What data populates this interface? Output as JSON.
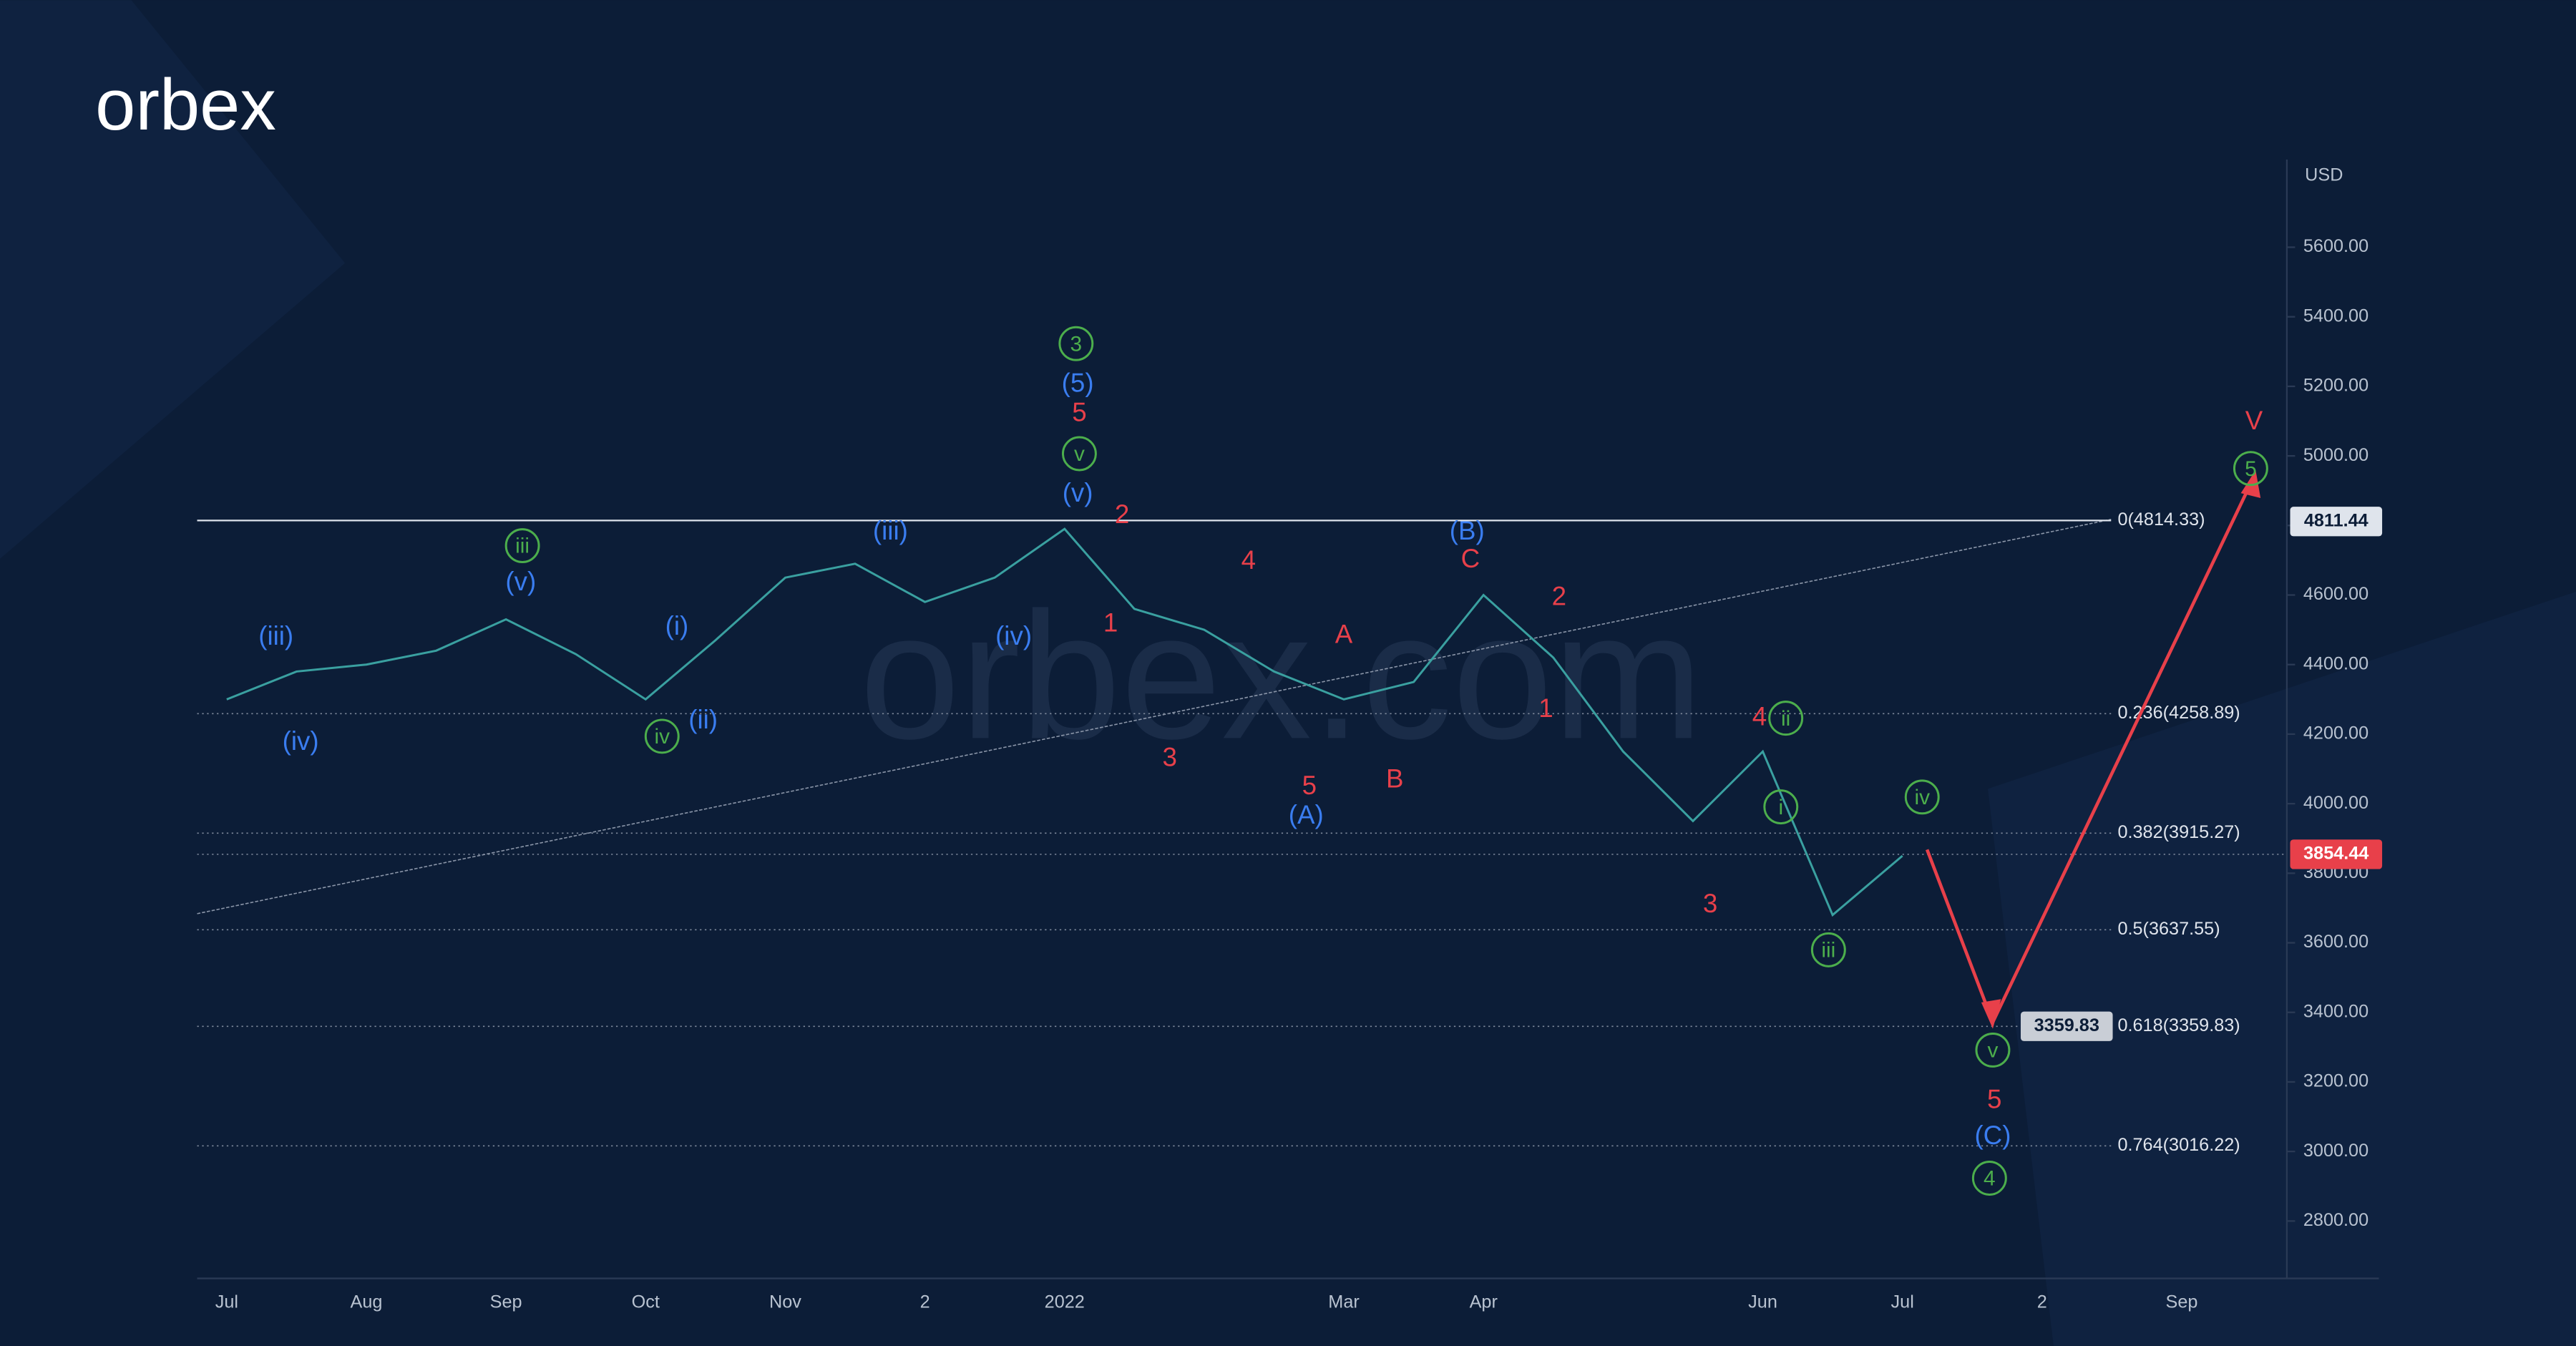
{
  "logo": "orbex",
  "watermark": "orbex.com",
  "chart_data": {
    "type": "line",
    "color": "#3aa0a0",
    "currency": "USD",
    "categories": [
      "Jul",
      null,
      "Aug",
      null,
      "Sep",
      null,
      "Oct",
      null,
      "Nov",
      null,
      "2",
      null,
      "2022",
      null,
      null,
      null,
      "Mar",
      null,
      "Apr",
      null,
      null,
      null,
      "Jun",
      null,
      "Jul",
      null,
      "2",
      null,
      "Sep"
    ],
    "values": [
      4300,
      4380,
      4400,
      4440,
      4530,
      4430,
      4300,
      4470,
      4650,
      4690,
      4580,
      4650,
      4790,
      4560,
      4500,
      4380,
      4300,
      4350,
      4600,
      4420,
      4150,
      3950,
      4150,
      3680,
      3850,
      null,
      null,
      null,
      null
    ],
    "ylim": [
      2635,
      5852
    ],
    "yticks": [
      {
        "value": 2800,
        "label": "2800.00"
      },
      {
        "value": 3000,
        "label": "3000.00"
      },
      {
        "value": 3200,
        "label": "3200.00"
      },
      {
        "value": 3400,
        "label": "3400.00"
      },
      {
        "value": 3600,
        "label": "3600.00"
      },
      {
        "value": 3800,
        "label": "3800.00"
      },
      {
        "value": 4000,
        "label": "4000.00"
      },
      {
        "value": 4200,
        "label": "4200.00"
      },
      {
        "value": 4400,
        "label": "4400.00"
      },
      {
        "value": 4600,
        "label": "4600.00"
      },
      {
        "value": 4800,
        "label": "4800.00"
      },
      {
        "value": 5000,
        "label": "5000.00"
      },
      {
        "value": 5200,
        "label": "5200.00"
      },
      {
        "value": 5400,
        "label": "5400.00"
      },
      {
        "value": 5600,
        "label": "5600.00"
      }
    ],
    "fib_levels": [
      {
        "value": 4814.33,
        "label": "0(4814.33)"
      },
      {
        "value": 4258.89,
        "label": "0.236(4258.89)"
      },
      {
        "value": 3915.27,
        "label": "0.382(3915.27)"
      },
      {
        "value": 3637.55,
        "label": "0.5(3637.55)"
      },
      {
        "value": 3359.83,
        "label": "0.618(3359.83)"
      },
      {
        "value": 3016.22,
        "label": "0.764(3016.22)"
      }
    ],
    "price_tags": [
      4811.44,
      3854.44,
      3359.83
    ],
    "waves": [
      "3",
      "v",
      "iii",
      "iv",
      "ii",
      "i",
      "iv",
      "iii",
      "v",
      "4",
      "5",
      "(5)",
      "(v)",
      "(iii)",
      "(iv)",
      "(v)",
      "(i)",
      "(ii)",
      "(iii)",
      "(iv)",
      "(B)",
      "(A)",
      "(C)",
      "5",
      "2",
      "1",
      "3",
      "4",
      "A",
      "B",
      "5",
      "C",
      "2",
      "1",
      "4",
      "3",
      "5",
      "V"
    ]
  }
}
